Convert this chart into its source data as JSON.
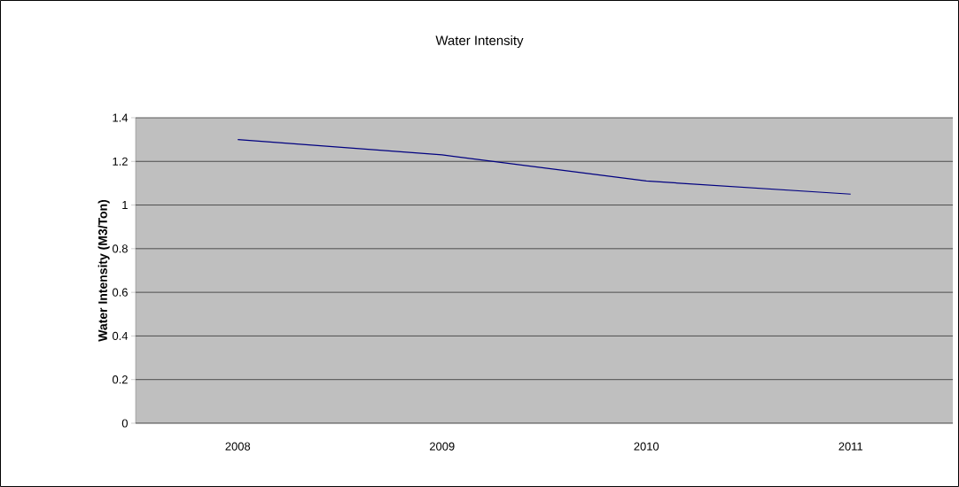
{
  "chart_data": {
    "type": "line",
    "title": "Water Intensity",
    "ylabel": "Water Intensity (M3/Ton)",
    "categories": [
      "2008",
      "2009",
      "2010",
      "2011"
    ],
    "series": [
      {
        "color": "#000080",
        "values": [
          1.3,
          1.23,
          1.11,
          1.05
        ]
      }
    ],
    "ylim": [
      0,
      1.4
    ],
    "yticks": [
      0,
      0.2,
      0.4,
      0.6,
      0.8,
      1,
      1.2,
      1.4
    ],
    "grid": "y",
    "marker": "none"
  }
}
